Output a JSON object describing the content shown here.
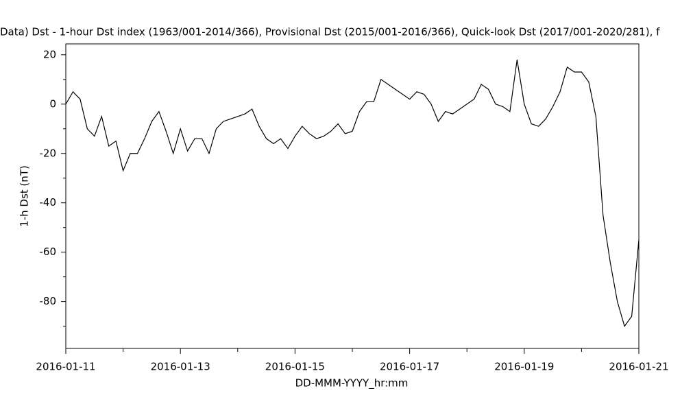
{
  "chart_data": {
    "type": "line",
    "title": "Data)  Dst - 1-hour Dst index (1963/001-2014/366), Provisional Dst (2015/001-2016/366), Quick-look Dst (2017/001-2020/281), f",
    "xlabel": "DD-MMM-YYYY_hr:mm",
    "ylabel": "1-h Dst (nT)",
    "color": "#000000",
    "x": [
      "2016-01-11T00:00",
      "2016-01-11T03:00",
      "2016-01-11T06:00",
      "2016-01-11T09:00",
      "2016-01-11T12:00",
      "2016-01-11T15:00",
      "2016-01-11T18:00",
      "2016-01-11T21:00",
      "2016-01-12T00:00",
      "2016-01-12T03:00",
      "2016-01-12T06:00",
      "2016-01-12T09:00",
      "2016-01-12T12:00",
      "2016-01-12T15:00",
      "2016-01-12T18:00",
      "2016-01-12T21:00",
      "2016-01-13T00:00",
      "2016-01-13T03:00",
      "2016-01-13T06:00",
      "2016-01-13T09:00",
      "2016-01-13T12:00",
      "2016-01-13T15:00",
      "2016-01-13T18:00",
      "2016-01-13T21:00",
      "2016-01-14T00:00",
      "2016-01-14T03:00",
      "2016-01-14T06:00",
      "2016-01-14T09:00",
      "2016-01-14T12:00",
      "2016-01-14T15:00",
      "2016-01-14T18:00",
      "2016-01-14T21:00",
      "2016-01-15T00:00",
      "2016-01-15T03:00",
      "2016-01-15T06:00",
      "2016-01-15T09:00",
      "2016-01-15T12:00",
      "2016-01-15T15:00",
      "2016-01-15T18:00",
      "2016-01-15T21:00",
      "2016-01-16T00:00",
      "2016-01-16T03:00",
      "2016-01-16T06:00",
      "2016-01-16T09:00",
      "2016-01-16T12:00",
      "2016-01-16T15:00",
      "2016-01-16T18:00",
      "2016-01-16T21:00",
      "2016-01-17T00:00",
      "2016-01-17T03:00",
      "2016-01-17T06:00",
      "2016-01-17T09:00",
      "2016-01-17T12:00",
      "2016-01-17T15:00",
      "2016-01-17T18:00",
      "2016-01-17T21:00",
      "2016-01-18T00:00",
      "2016-01-18T03:00",
      "2016-01-18T06:00",
      "2016-01-18T09:00",
      "2016-01-18T12:00",
      "2016-01-18T15:00",
      "2016-01-18T18:00",
      "2016-01-18T21:00",
      "2016-01-19T00:00",
      "2016-01-19T03:00",
      "2016-01-19T06:00",
      "2016-01-19T09:00",
      "2016-01-19T12:00",
      "2016-01-19T15:00",
      "2016-01-19T18:00",
      "2016-01-19T21:00",
      "2016-01-20T00:00",
      "2016-01-20T03:00",
      "2016-01-20T06:00",
      "2016-01-20T09:00",
      "2016-01-20T12:00",
      "2016-01-20T15:00",
      "2016-01-20T18:00",
      "2016-01-20T21:00",
      "2016-01-21T00:00"
    ],
    "values": [
      0,
      5,
      2,
      -10,
      -13,
      -5,
      -17,
      -15,
      -27,
      -20,
      -20,
      -14,
      -7,
      -3,
      -11,
      -20,
      -10,
      -19,
      -14,
      -14,
      -20,
      -10,
      -7,
      -6,
      -5,
      -4,
      -2,
      -9,
      -14,
      -16,
      -14,
      -18,
      -13,
      -9,
      -12,
      -14,
      -13,
      -11,
      -8,
      -12,
      -11,
      -3,
      1,
      1,
      10,
      8,
      6,
      4,
      2,
      5,
      4,
      0,
      -7,
      -3,
      -4,
      -2,
      0,
      2,
      8,
      6,
      0,
      -1,
      -3,
      18,
      0,
      -8,
      -9,
      -6,
      -1,
      5,
      15,
      13,
      13,
      9,
      -5,
      -45,
      -64,
      -80,
      -90,
      -86,
      -55
    ],
    "xlim": [
      "2016-01-11T00:00",
      "2016-01-21T00:00"
    ],
    "xticks": [
      "2016-01-11",
      "2016-01-13",
      "2016-01-15",
      "2016-01-17",
      "2016-01-19",
      "2016-01-21"
    ],
    "xminorticks": [
      "2016-01-12",
      "2016-01-14",
      "2016-01-16",
      "2016-01-18",
      "2016-01-20"
    ],
    "ylim": [
      -99,
      24.4
    ],
    "yticks": [
      -80,
      -60,
      -40,
      -20,
      0,
      20
    ],
    "yminorticks": [
      -90,
      -70,
      -50,
      -30,
      -10,
      10
    ],
    "grid": false
  }
}
